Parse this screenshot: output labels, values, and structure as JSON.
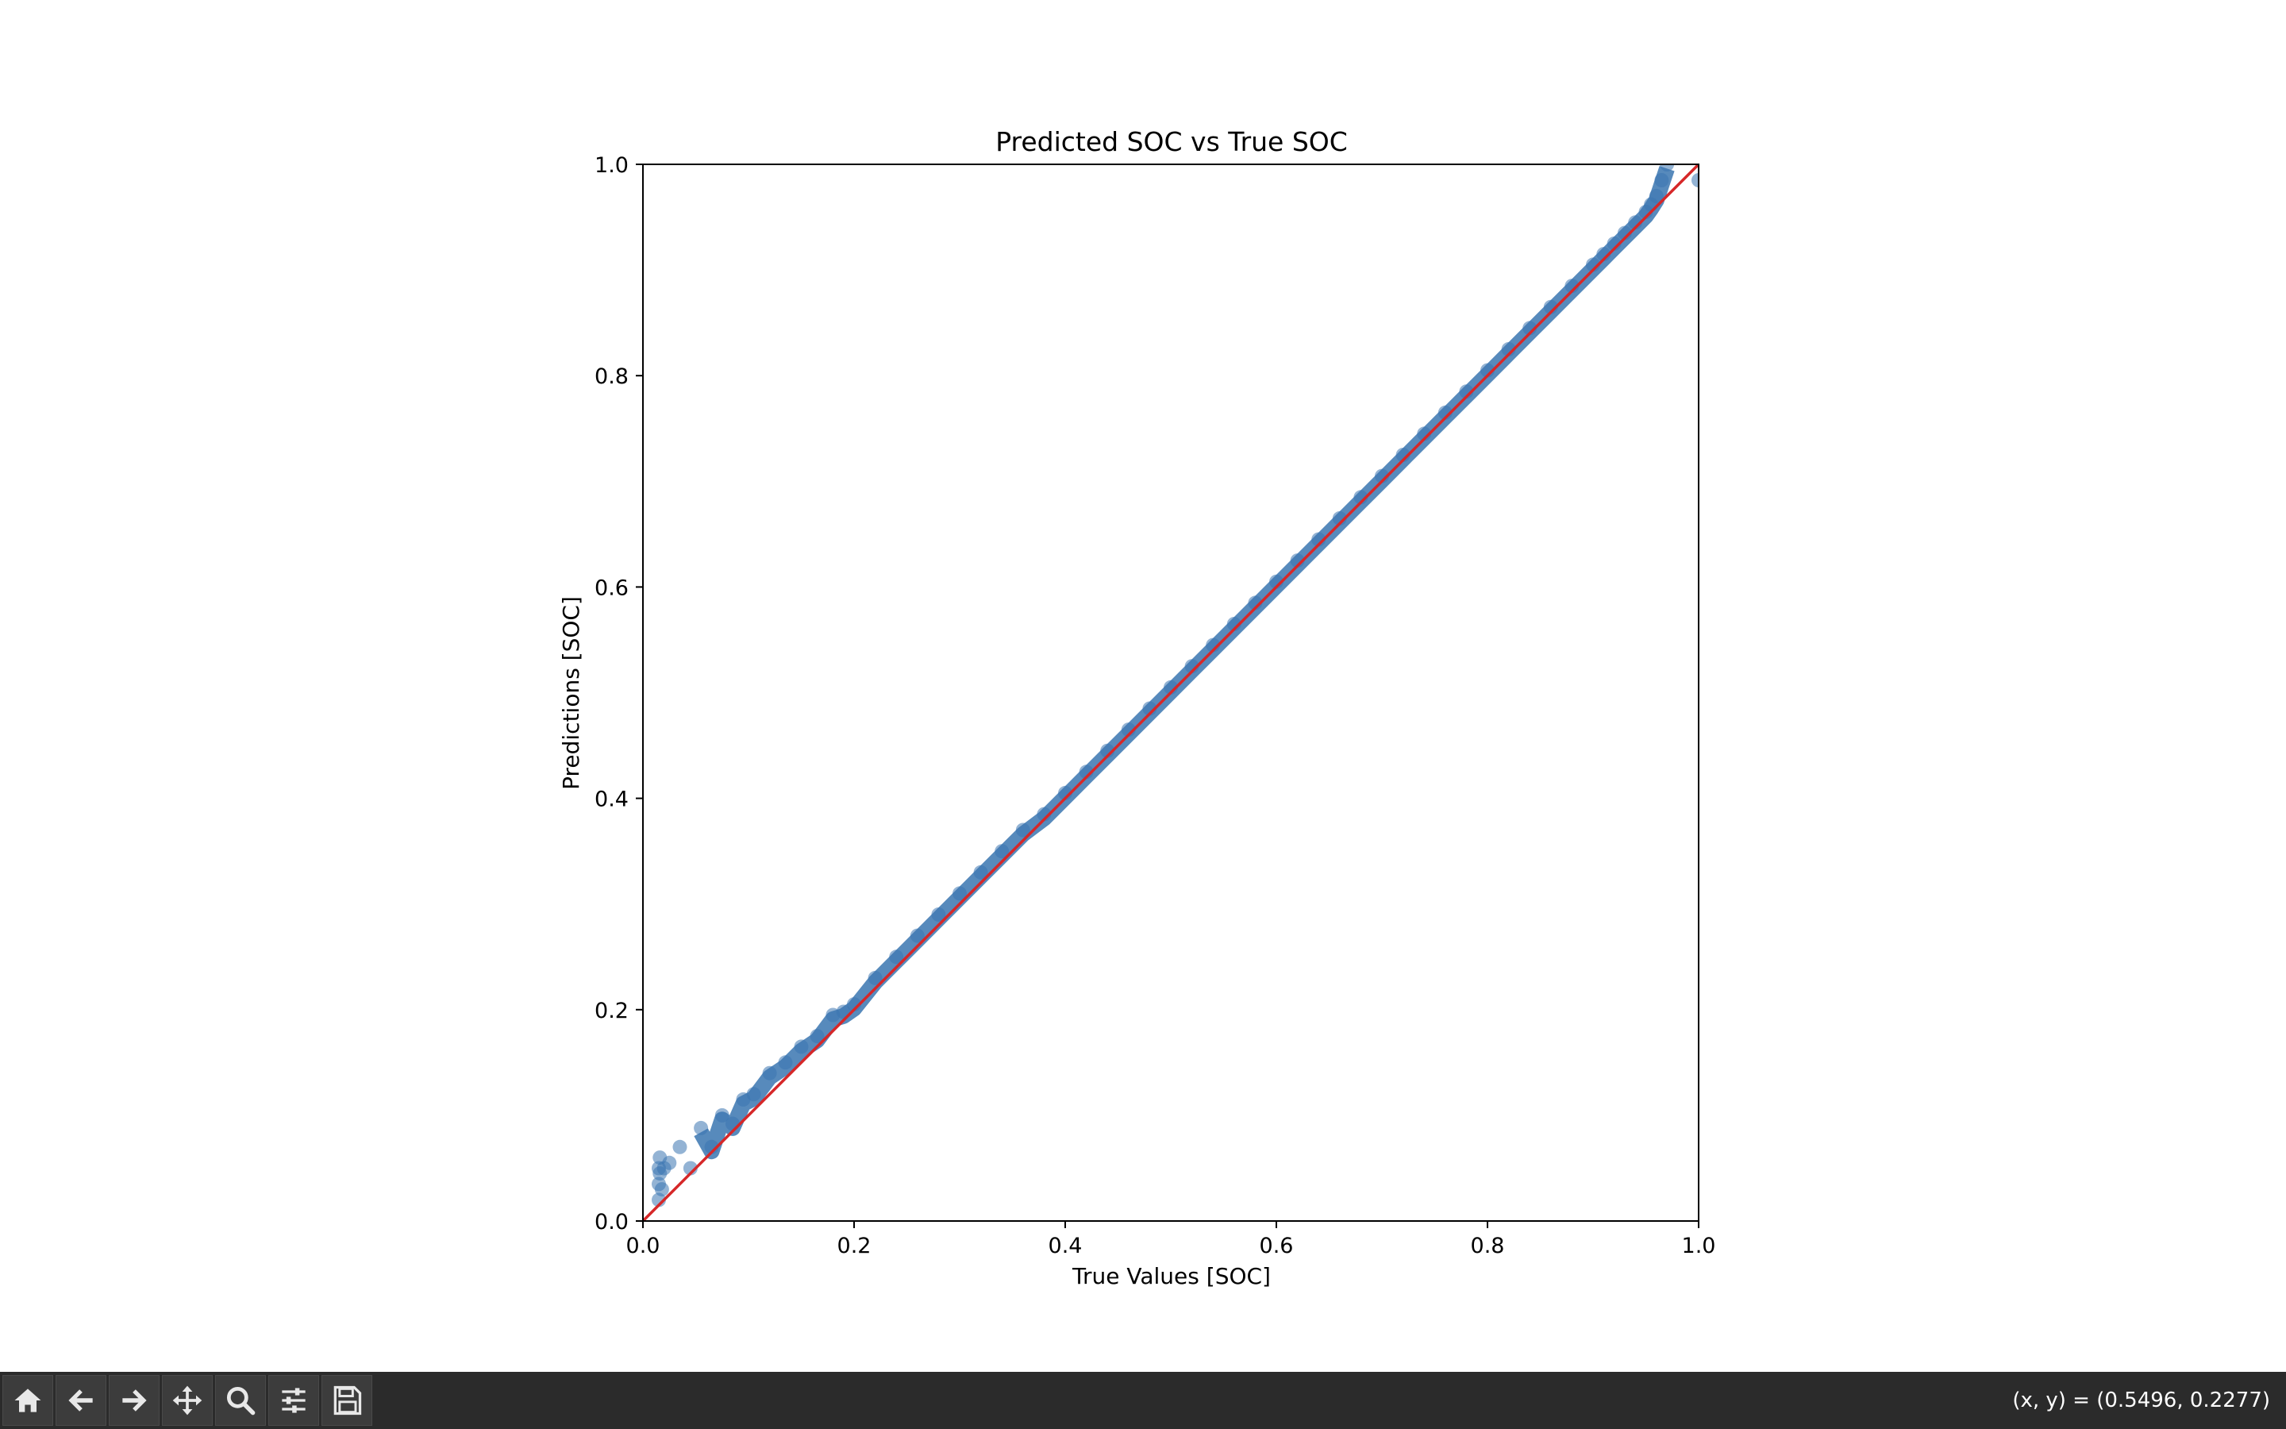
{
  "chart_data": {
    "type": "scatter",
    "title": "Predicted SOC vs True SOC",
    "xlabel": "True Values [SOC]",
    "ylabel": "Predictions [SOC]",
    "xlim": [
      0.0,
      1.0
    ],
    "ylim": [
      0.0,
      1.0
    ],
    "xticks": [
      "0.0",
      "0.2",
      "0.4",
      "0.6",
      "0.8",
      "1.0"
    ],
    "yticks": [
      "0.0",
      "0.2",
      "0.4",
      "0.6",
      "0.8",
      "1.0"
    ],
    "grid": false,
    "legend": "none",
    "colors": {
      "points": "#3a75b0",
      "reference_line": "#d62728"
    },
    "reference_line": {
      "x": [
        0.0,
        1.0
      ],
      "y": [
        0.0,
        1.0
      ]
    },
    "scatter": {
      "x": [
        0.015,
        0.015,
        0.015,
        0.016,
        0.016,
        0.018,
        0.02,
        0.025,
        0.035,
        0.045,
        0.055,
        0.065,
        0.075,
        0.085,
        0.095,
        0.105,
        0.12,
        0.135,
        0.15,
        0.165,
        0.18,
        0.19,
        0.2,
        0.22,
        0.24,
        0.26,
        0.28,
        0.3,
        0.32,
        0.34,
        0.36,
        0.38,
        0.4,
        0.42,
        0.44,
        0.46,
        0.48,
        0.5,
        0.52,
        0.54,
        0.56,
        0.58,
        0.6,
        0.62,
        0.64,
        0.66,
        0.68,
        0.7,
        0.72,
        0.74,
        0.76,
        0.78,
        0.8,
        0.82,
        0.84,
        0.86,
        0.88,
        0.9,
        0.91,
        0.92,
        0.93,
        0.94,
        0.95,
        0.955,
        0.96,
        0.965,
        0.97,
        1.0
      ],
      "y": [
        0.02,
        0.035,
        0.05,
        0.06,
        0.045,
        0.03,
        0.05,
        0.055,
        0.07,
        0.05,
        0.088,
        0.07,
        0.1,
        0.092,
        0.115,
        0.12,
        0.14,
        0.15,
        0.165,
        0.175,
        0.195,
        0.198,
        0.205,
        0.23,
        0.25,
        0.27,
        0.29,
        0.31,
        0.33,
        0.35,
        0.37,
        0.385,
        0.405,
        0.425,
        0.445,
        0.465,
        0.485,
        0.505,
        0.525,
        0.545,
        0.565,
        0.585,
        0.605,
        0.625,
        0.645,
        0.665,
        0.685,
        0.705,
        0.725,
        0.745,
        0.765,
        0.785,
        0.805,
        0.825,
        0.845,
        0.865,
        0.885,
        0.905,
        0.915,
        0.925,
        0.935,
        0.945,
        0.955,
        0.962,
        0.97,
        0.985,
        1.0,
        0.985
      ]
    }
  },
  "toolbar": {
    "buttons": [
      {
        "name": "home-icon"
      },
      {
        "name": "back-arrow-icon"
      },
      {
        "name": "forward-arrow-icon"
      },
      {
        "name": "pan-move-icon"
      },
      {
        "name": "zoom-magnifier-icon"
      },
      {
        "name": "configure-subplots-icon"
      },
      {
        "name": "save-disk-icon"
      }
    ],
    "coordinate_readout": "(x, y) = (0.5496, 0.2277)"
  }
}
